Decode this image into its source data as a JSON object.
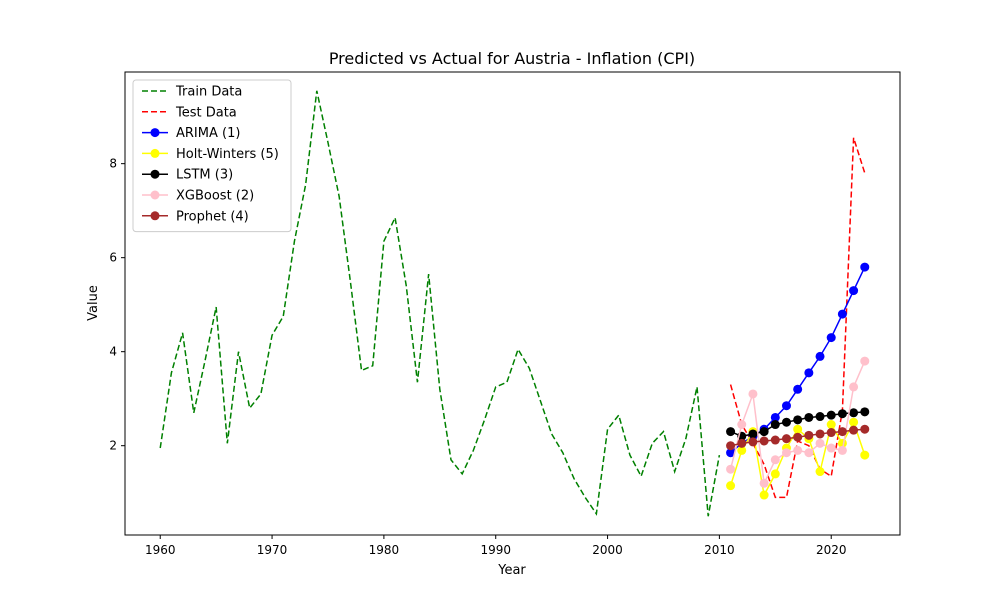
{
  "chart_data": {
    "type": "line",
    "title": "Predicted vs Actual for Austria - Inflation (CPI)",
    "xlabel": "Year",
    "ylabel": "Value",
    "xlim": [
      1956.85,
      2026.15
    ],
    "ylim": [
      0.1,
      9.95
    ],
    "x_ticks": [
      1960,
      1970,
      1980,
      1990,
      2000,
      2010,
      2020
    ],
    "y_ticks": [
      2,
      4,
      6,
      8
    ],
    "grid": false,
    "legend_position": "top-left",
    "series": [
      {
        "name": "Train Data",
        "color": "#008000",
        "style": "dashed",
        "marker": false,
        "x": [
          1960,
          1961,
          1962,
          1963,
          1964,
          1965,
          1966,
          1967,
          1968,
          1969,
          1970,
          1971,
          1972,
          1973,
          1974,
          1975,
          1976,
          1977,
          1978,
          1979,
          1980,
          1981,
          1982,
          1983,
          1984,
          1985,
          1986,
          1987,
          1988,
          1989,
          1990,
          1991,
          1992,
          1993,
          1994,
          1995,
          1996,
          1997,
          1998,
          1999,
          2000,
          2001,
          2002,
          2003,
          2004,
          2005,
          2006,
          2007,
          2008,
          2009,
          2010
        ],
        "y": [
          1.95,
          3.55,
          4.4,
          2.7,
          3.8,
          4.95,
          2.05,
          4.0,
          2.8,
          3.1,
          4.35,
          4.75,
          6.35,
          7.55,
          9.55,
          8.45,
          7.3,
          5.5,
          3.6,
          3.7,
          6.35,
          6.85,
          5.4,
          3.35,
          5.65,
          3.2,
          1.7,
          1.4,
          1.9,
          2.55,
          3.25,
          3.35,
          4.05,
          3.65,
          2.95,
          2.25,
          1.85,
          1.3,
          0.9,
          0.55,
          2.35,
          2.65,
          1.8,
          1.35,
          2.05,
          2.3,
          1.45,
          2.15,
          3.25,
          0.5,
          1.8
        ]
      },
      {
        "name": "Test Data",
        "color": "#ff0000",
        "style": "dashed",
        "marker": false,
        "x": [
          2011,
          2012,
          2013,
          2014,
          2015,
          2016,
          2017,
          2018,
          2019,
          2020,
          2021,
          2022,
          2023
        ],
        "y": [
          3.3,
          2.45,
          2.05,
          1.6,
          0.9,
          0.9,
          2.1,
          2.0,
          1.5,
          1.35,
          2.75,
          8.55,
          7.8
        ]
      },
      {
        "name": "ARIMA (1)",
        "color": "#0000ff",
        "style": "solid",
        "marker": true,
        "x": [
          2011,
          2012,
          2013,
          2014,
          2015,
          2016,
          2017,
          2018,
          2019,
          2020,
          2021,
          2022,
          2023
        ],
        "y": [
          1.85,
          2.05,
          2.2,
          2.35,
          2.6,
          2.85,
          3.2,
          3.55,
          3.9,
          4.3,
          4.8,
          5.3,
          5.8
        ]
      },
      {
        "name": "Holt-Winters (5)",
        "color": "#ffff00",
        "style": "solid",
        "marker": true,
        "x": [
          2011,
          2012,
          2013,
          2014,
          2015,
          2016,
          2017,
          2018,
          2019,
          2020,
          2021,
          2022,
          2023
        ],
        "y": [
          1.15,
          1.9,
          2.3,
          0.95,
          1.4,
          1.95,
          2.35,
          2.15,
          1.45,
          2.45,
          2.05,
          2.5,
          1.8
        ]
      },
      {
        "name": "LSTM (3)",
        "color": "#000000",
        "style": "solid",
        "marker": true,
        "x": [
          2011,
          2012,
          2013,
          2014,
          2015,
          2016,
          2017,
          2018,
          2019,
          2020,
          2021,
          2022,
          2023
        ],
        "y": [
          2.3,
          2.2,
          2.25,
          2.3,
          2.45,
          2.5,
          2.55,
          2.6,
          2.62,
          2.65,
          2.68,
          2.7,
          2.72
        ]
      },
      {
        "name": "XGBoost (2)",
        "color": "#ffc0cb",
        "style": "solid",
        "marker": true,
        "x": [
          2011,
          2012,
          2013,
          2014,
          2015,
          2016,
          2017,
          2018,
          2019,
          2020,
          2021,
          2022,
          2023
        ],
        "y": [
          1.5,
          2.45,
          3.1,
          1.2,
          1.7,
          1.85,
          1.9,
          1.85,
          2.05,
          1.95,
          1.9,
          3.25,
          3.8
        ]
      },
      {
        "name": "Prophet (4)",
        "color": "#a52a2a",
        "style": "solid",
        "marker": true,
        "x": [
          2011,
          2012,
          2013,
          2014,
          2015,
          2016,
          2017,
          2018,
          2019,
          2020,
          2021,
          2022,
          2023
        ],
        "y": [
          2.0,
          2.05,
          2.08,
          2.1,
          2.12,
          2.15,
          2.18,
          2.22,
          2.25,
          2.28,
          2.3,
          2.33,
          2.35
        ]
      }
    ]
  }
}
